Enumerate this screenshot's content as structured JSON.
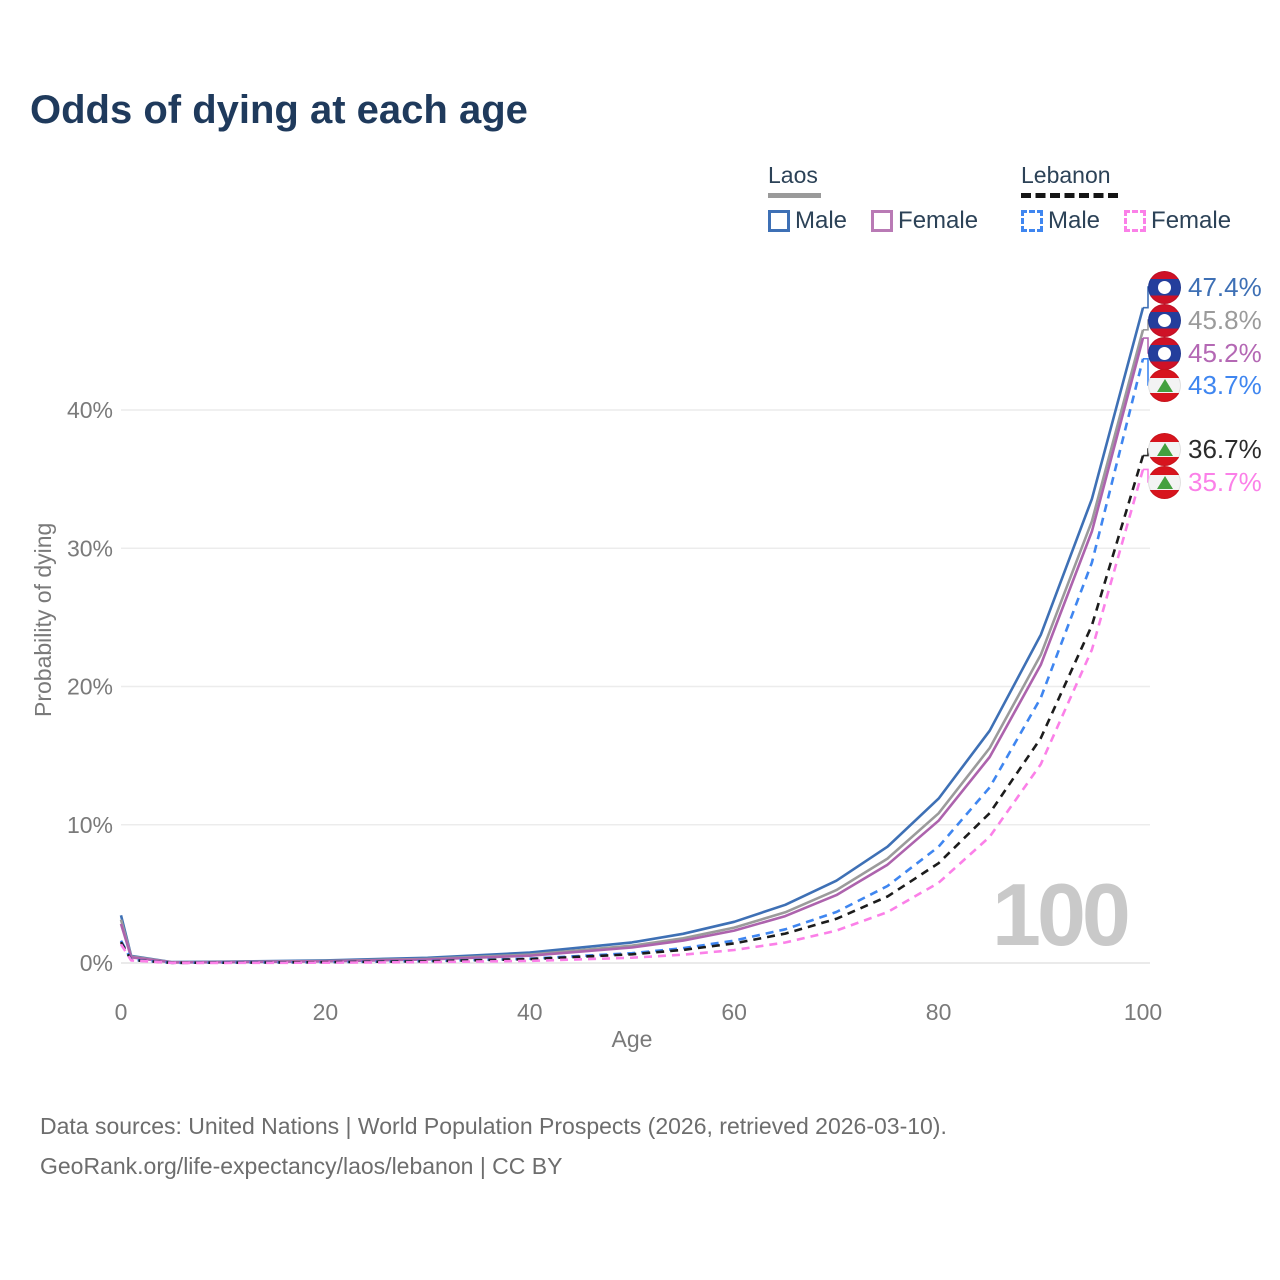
{
  "title": "Odds of dying at each age",
  "watermark": "100",
  "legend": {
    "groups": [
      {
        "country": "Laos",
        "line_style": "solid",
        "underline_color": "#9a9a9a",
        "items": [
          {
            "label": "Male",
            "color": "#3e70b5",
            "swatch": "solid"
          },
          {
            "label": "Female",
            "color": "#b97ab5",
            "swatch": "solid"
          }
        ]
      },
      {
        "country": "Lebanon",
        "line_style": "dashed",
        "underline_color": "#151515",
        "items": [
          {
            "label": "Male",
            "color": "#3f86f0",
            "swatch": "dashed"
          },
          {
            "label": "Female",
            "color": "#fb80e8",
            "swatch": "dashed"
          }
        ]
      }
    ]
  },
  "axes": {
    "x": {
      "label": "Age",
      "ticks": [
        0,
        20,
        40,
        60,
        80,
        100
      ],
      "range": [
        0,
        100
      ]
    },
    "y": {
      "label": "Probability of dying",
      "ticks": [
        {
          "value": 0,
          "label": "0%"
        },
        {
          "value": 10,
          "label": "10%"
        },
        {
          "value": 20,
          "label": "20%"
        },
        {
          "value": 30,
          "label": "30%"
        },
        {
          "value": 40,
          "label": "40%"
        }
      ],
      "range": [
        0,
        48
      ]
    }
  },
  "chart_data": {
    "type": "line",
    "title": "Odds of dying at each age",
    "xlabel": "Age",
    "ylabel": "Probability of dying",
    "xlim": [
      0,
      100
    ],
    "ylim": [
      0,
      48
    ],
    "grid": true,
    "legend_position": "top-right",
    "x": [
      0,
      1,
      5,
      10,
      20,
      30,
      40,
      50,
      55,
      60,
      65,
      70,
      75,
      80,
      85,
      90,
      95,
      100
    ],
    "series": [
      {
        "name": "Laos Male",
        "color": "#3e70b5",
        "dash": false,
        "values": [
          3.45,
          0.51,
          0.066,
          0.094,
          0.187,
          0.373,
          0.75,
          1.49,
          2.11,
          2.98,
          4.21,
          5.95,
          8.41,
          11.89,
          16.8,
          23.74,
          33.57,
          47.4
        ]
      },
      {
        "name": "Laos Both sexes",
        "color": "#9b9b9b",
        "dash": false,
        "values": [
          3.13,
          0.46,
          0.049,
          0.07,
          0.143,
          0.294,
          0.61,
          1.25,
          1.79,
          2.56,
          3.67,
          5.27,
          7.55,
          10.83,
          15.55,
          22.29,
          31.96,
          45.8
        ]
      },
      {
        "name": "Laos Female",
        "color": "#ad63ad",
        "dash": false,
        "values": [
          2.83,
          0.41,
          0.04,
          0.058,
          0.121,
          0.254,
          0.53,
          1.12,
          1.62,
          2.34,
          3.39,
          4.91,
          7.11,
          10.29,
          14.9,
          21.57,
          31.22,
          45.2
        ]
      },
      {
        "name": "Lebanon Male",
        "color": "#3f86f0",
        "dash": true,
        "values": [
          1.61,
          0.23,
          0.017,
          0.026,
          0.06,
          0.137,
          0.31,
          0.71,
          1.07,
          1.62,
          2.44,
          3.69,
          5.57,
          8.41,
          12.7,
          19.18,
          28.96,
          43.7
        ]
      },
      {
        "name": "Lebanon Both sexes",
        "color": "#1c1c1c",
        "dash": true,
        "values": [
          1.51,
          0.21,
          0.016,
          0.024,
          0.055,
          0.124,
          0.28,
          0.63,
          0.95,
          1.42,
          2.13,
          3.2,
          4.81,
          7.22,
          10.84,
          16.27,
          24.42,
          36.7
        ]
      },
      {
        "name": "Lebanon Female",
        "color": "#fb80e8",
        "dash": true,
        "values": [
          1.35,
          0.19,
          0.006,
          0.01,
          0.025,
          0.062,
          0.153,
          0.38,
          0.6,
          0.94,
          1.48,
          2.34,
          3.68,
          5.8,
          9.13,
          14.38,
          22.66,
          35.7
        ]
      }
    ],
    "end_labels": [
      {
        "text": "47.4%",
        "flag": "laos",
        "color": "#3e70b5"
      },
      {
        "text": "45.8%",
        "flag": "laos",
        "color": "#9b9b9b"
      },
      {
        "text": "45.2%",
        "flag": "laos",
        "color": "#b468b4"
      },
      {
        "text": "43.7%",
        "flag": "lebanon",
        "color": "#3f86f0"
      },
      {
        "text": "36.7%",
        "flag": "lebanon",
        "color": "#2b2b2b"
      },
      {
        "text": "35.7%",
        "flag": "lebanon",
        "color": "#fb80e8"
      }
    ]
  },
  "source": {
    "line1": "Data sources: United Nations | World Population Prospects (2026, retrieved 2026-03-10).",
    "line2": "GeoRank.org/life-expectancy/laos/lebanon | CC BY"
  }
}
